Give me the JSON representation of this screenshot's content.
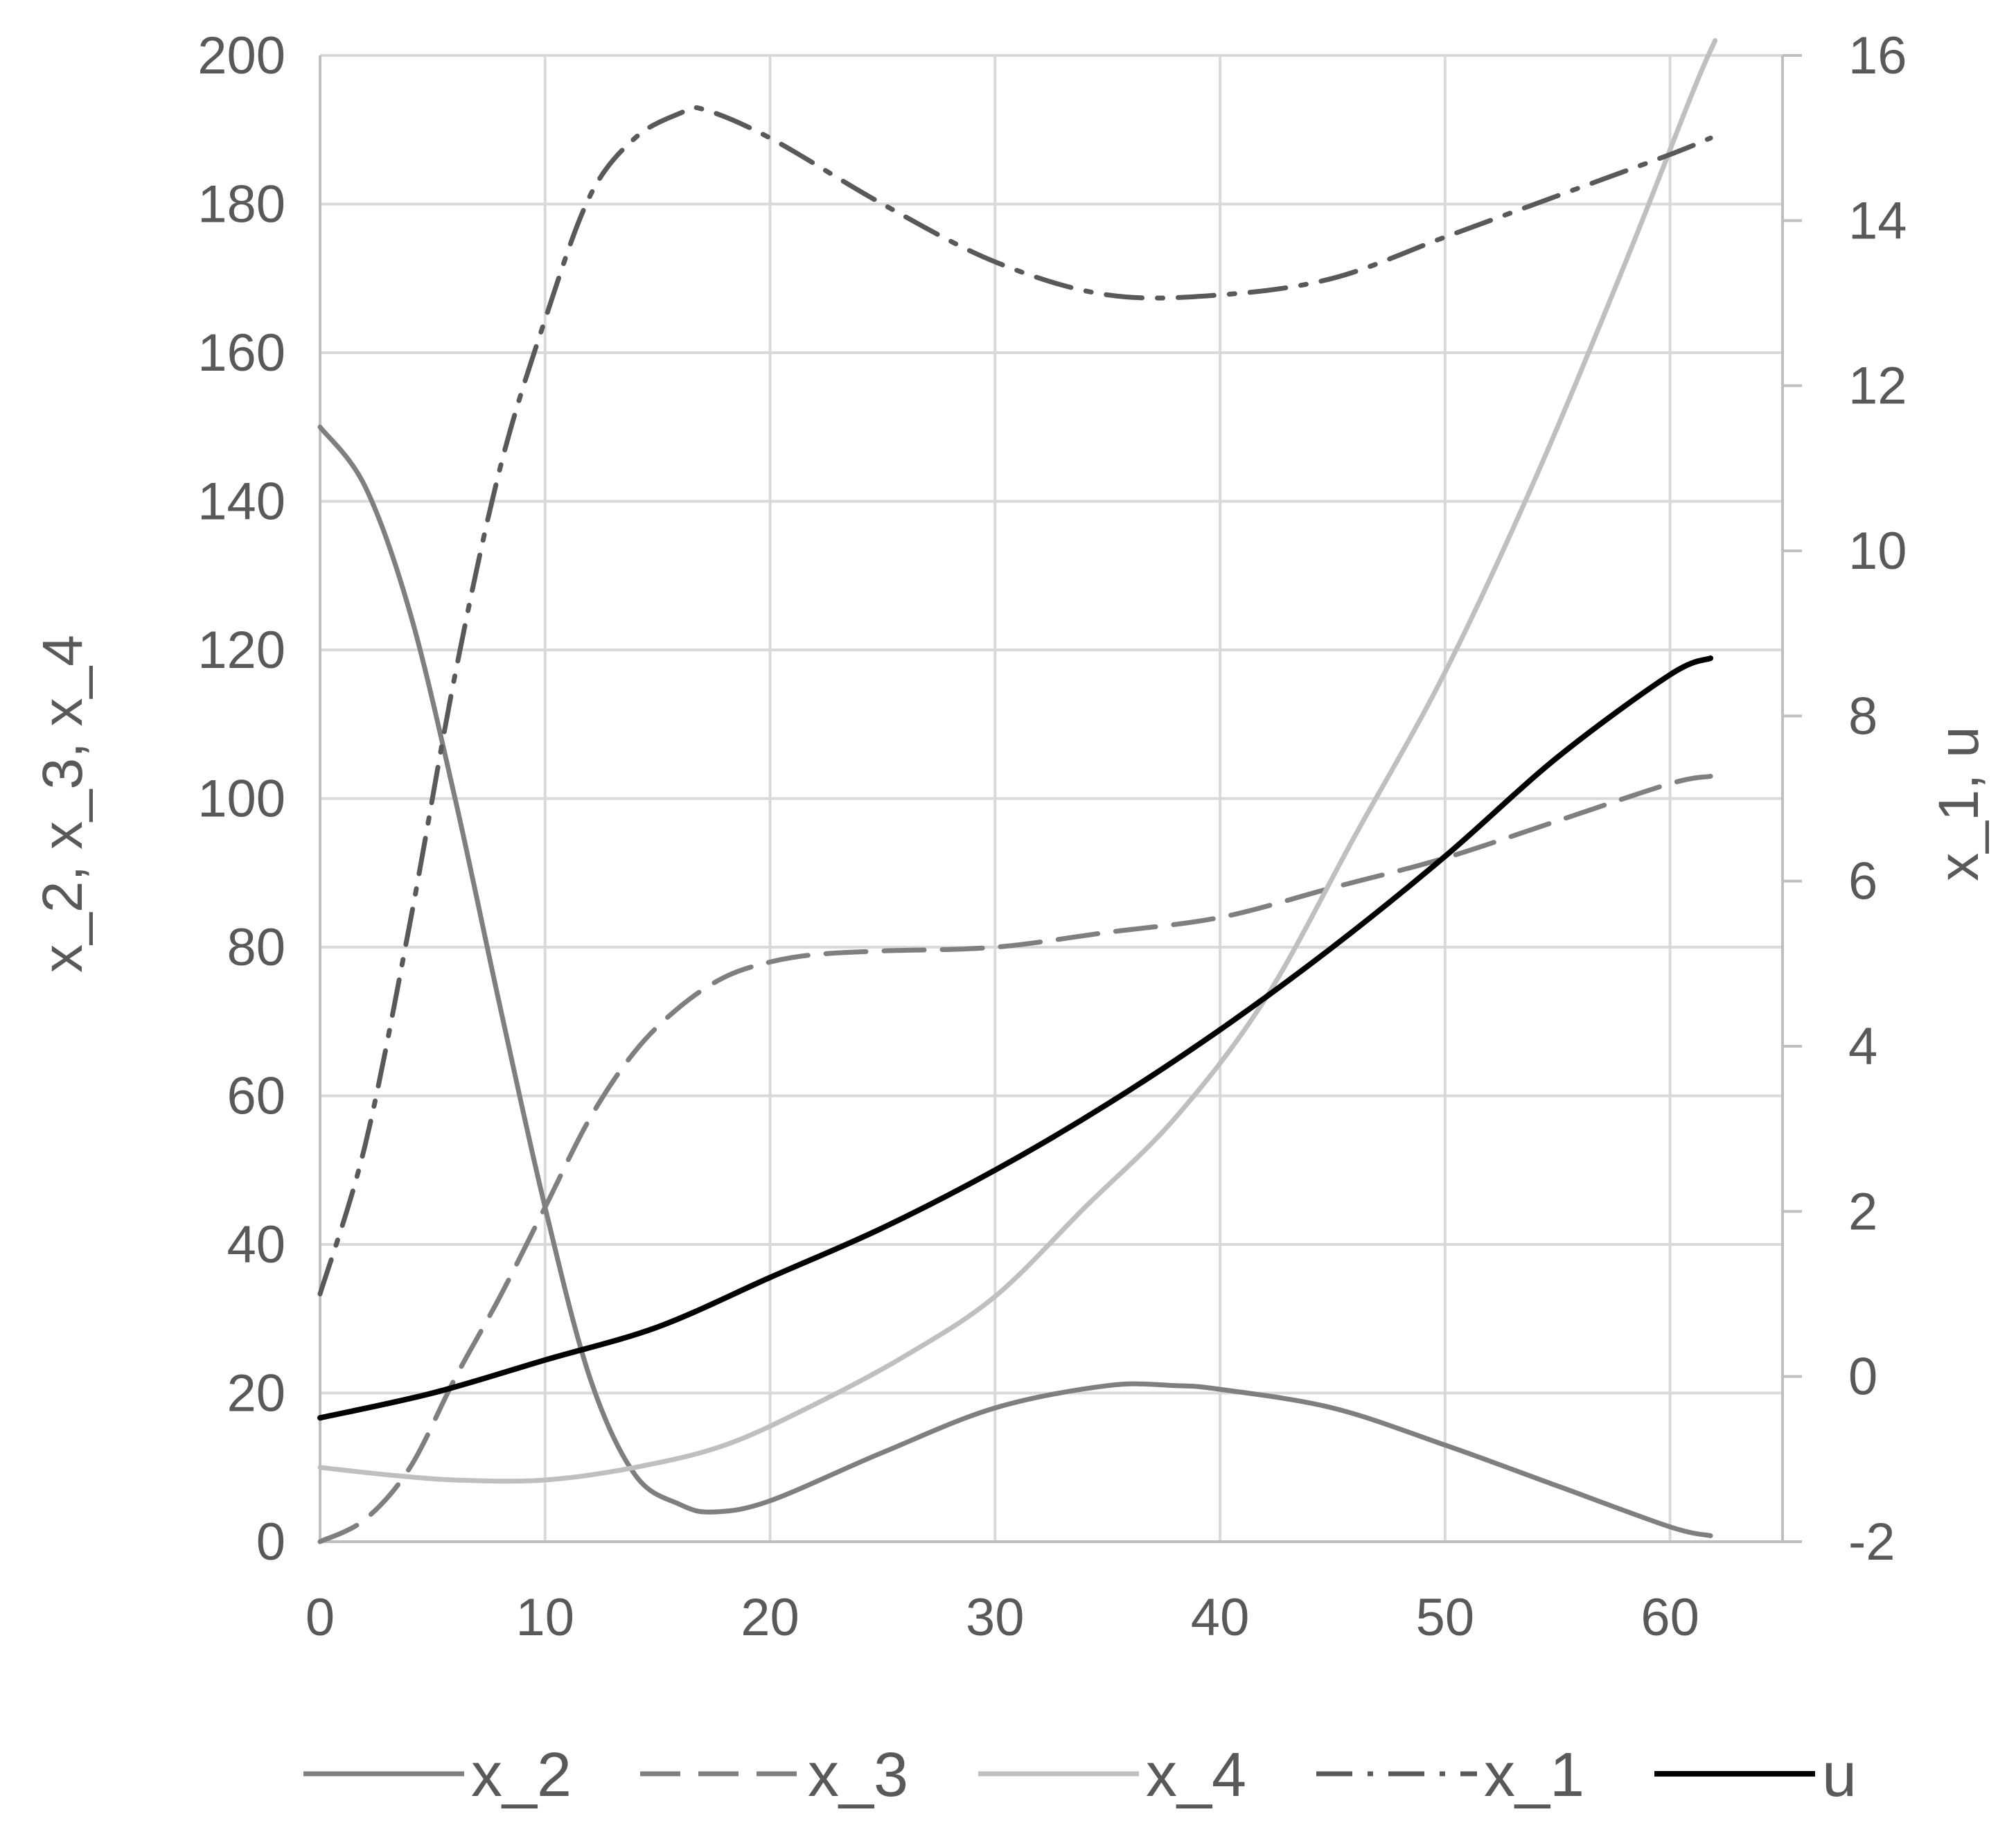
{
  "chart_data": {
    "type": "line",
    "xlim": [
      0,
      65
    ],
    "x_ticks": [
      0,
      10,
      20,
      30,
      40,
      50,
      60
    ],
    "y_left": {
      "label": "x_2,  x_3,  x_4",
      "lim": [
        0,
        200
      ],
      "ticks": [
        0,
        20,
        40,
        60,
        80,
        100,
        120,
        140,
        160,
        180,
        200
      ]
    },
    "y_right": {
      "label": "x_1, u",
      "lim": [
        -2,
        16
      ],
      "ticks": [
        -2,
        0,
        2,
        4,
        6,
        8,
        10,
        12,
        14,
        16
      ]
    },
    "grid": true,
    "legend_position": "bottom",
    "series": [
      {
        "name": "x_2",
        "axis": "left",
        "color": "#7f7f7f",
        "style": "solid",
        "points": [
          [
            0,
            150
          ],
          [
            2,
            142
          ],
          [
            4,
            125
          ],
          [
            6,
            100
          ],
          [
            8,
            72
          ],
          [
            10,
            45
          ],
          [
            12,
            22
          ],
          [
            14,
            9
          ],
          [
            16,
            5
          ],
          [
            17.5,
            4
          ],
          [
            20,
            5.5
          ],
          [
            25,
            12
          ],
          [
            30,
            18
          ],
          [
            35,
            21
          ],
          [
            38,
            21
          ],
          [
            40,
            20.5
          ],
          [
            45,
            18
          ],
          [
            50,
            13
          ],
          [
            55,
            7.5
          ],
          [
            60,
            2
          ],
          [
            61.8,
            0.8
          ]
        ]
      },
      {
        "name": "x_3",
        "axis": "left",
        "color": "#7f7f7f",
        "style": "dash",
        "points": [
          [
            0,
            0
          ],
          [
            2,
            3
          ],
          [
            4,
            10
          ],
          [
            6,
            22
          ],
          [
            8,
            33
          ],
          [
            10,
            45
          ],
          [
            12,
            57
          ],
          [
            14,
            66
          ],
          [
            16,
            72
          ],
          [
            18,
            76
          ],
          [
            20,
            78
          ],
          [
            22,
            79
          ],
          [
            25,
            79.5
          ],
          [
            30,
            80
          ],
          [
            35,
            82
          ],
          [
            40,
            84
          ],
          [
            45,
            88
          ],
          [
            50,
            92
          ],
          [
            55,
            97
          ],
          [
            60,
            102
          ],
          [
            61.8,
            103
          ]
        ]
      },
      {
        "name": "x_4",
        "axis": "left",
        "color": "#bfbfbf",
        "style": "solid",
        "points": [
          [
            0,
            10
          ],
          [
            3,
            9
          ],
          [
            6,
            8.3
          ],
          [
            10,
            8.3
          ],
          [
            14,
            10
          ],
          [
            18,
            13
          ],
          [
            22,
            18.5
          ],
          [
            26,
            25
          ],
          [
            30,
            33
          ],
          [
            34,
            45
          ],
          [
            38,
            57
          ],
          [
            42,
            73
          ],
          [
            46,
            95
          ],
          [
            50,
            117
          ],
          [
            54,
            143
          ],
          [
            58,
            172
          ],
          [
            61,
            195
          ],
          [
            62,
            202
          ]
        ]
      },
      {
        "name": "x_1",
        "axis": "right",
        "color": "#595959",
        "style": "dashdot",
        "points": [
          [
            0,
            1
          ],
          [
            2,
            2.8
          ],
          [
            4,
            5.5
          ],
          [
            6,
            8.5
          ],
          [
            8,
            11
          ],
          [
            10,
            12.8
          ],
          [
            12,
            14.3
          ],
          [
            14,
            15
          ],
          [
            16,
            15.3
          ],
          [
            17,
            15.35
          ],
          [
            20,
            15
          ],
          [
            25,
            14.2
          ],
          [
            30,
            13.5
          ],
          [
            35,
            13.1
          ],
          [
            40,
            13.1
          ],
          [
            45,
            13.3
          ],
          [
            50,
            13.8
          ],
          [
            55,
            14.3
          ],
          [
            60,
            14.8
          ],
          [
            61.8,
            15
          ]
        ]
      },
      {
        "name": "u",
        "axis": "right",
        "color": "#000000",
        "style": "solid",
        "points": [
          [
            0,
            -0.5
          ],
          [
            5,
            -0.2
          ],
          [
            10,
            0.2
          ],
          [
            15,
            0.6
          ],
          [
            20,
            1.2
          ],
          [
            25,
            1.8
          ],
          [
            30,
            2.5
          ],
          [
            35,
            3.3
          ],
          [
            40,
            4.2
          ],
          [
            45,
            5.2
          ],
          [
            50,
            6.3
          ],
          [
            55,
            7.5
          ],
          [
            60,
            8.5
          ],
          [
            61.8,
            8.7
          ]
        ]
      }
    ]
  }
}
